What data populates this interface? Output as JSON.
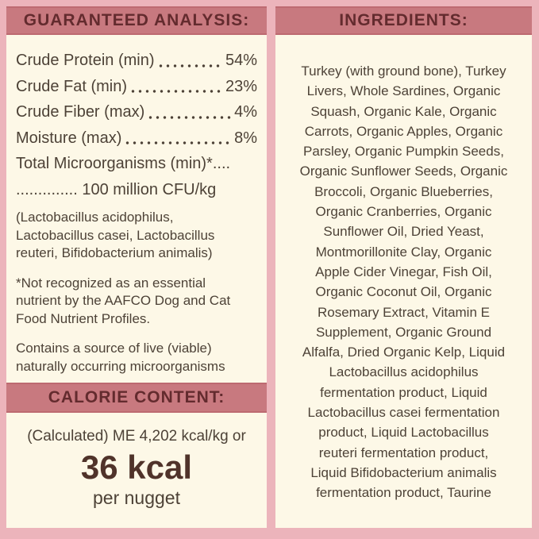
{
  "colors": {
    "background_pink": "#ecb4bb",
    "header_band": "#c8797f",
    "header_band_edge": "#bd6a71",
    "header_text": "#632b2e",
    "panel_cream": "#fdf8e7",
    "body_text": "#4d4237",
    "kcal_text": "#50332a"
  },
  "left": {
    "analysis": {
      "title": "GUARANTEED ANALYSIS:",
      "rows": [
        {
          "label": "Crude Protein (min)",
          "value": "54%"
        },
        {
          "label": "Crude Fat (min)",
          "value": "23%"
        },
        {
          "label": "Crude Fiber (max)",
          "value": "4%"
        },
        {
          "label": "Moisture (max)",
          "value": "8%"
        }
      ],
      "microorganisms_line1": "Total Microorganisms (min)*....",
      "microorganisms_line2": ".............. 100 million CFU/kg",
      "note_bacteria": "(Lactobacillus acidophilus,\nLactobacillus casei, Lactobacillus\nreuteri, Bifidobacterium animalis)",
      "note_aafco": "*Not recognized as an essential\nnutrient by the AAFCO Dog and Cat\nFood Nutrient Profiles.",
      "note_live": "Contains a source of live (viable)\nnaturally occurring microorganisms"
    },
    "calorie": {
      "title": "CALORIE CONTENT:",
      "line1": "(Calculated) ME 4,202 kcal/kg or",
      "kcal": "36 kcal",
      "per": "per nugget"
    }
  },
  "right": {
    "title": "INGREDIENTS:",
    "ingredients": "Turkey (with ground bone), Turkey\nLivers,  Whole Sardines, Organic\nSquash, Organic Kale, Organic\nCarrots, Organic Apples, Organic\nParsley, Organic Pumpkin Seeds,\nOrganic Sunflower Seeds, Organic\nBroccoli, Organic Blueberries,\nOrganic Cranberries, Organic\nSunflower Oil, Dried Yeast,\nMontmorillonite Clay, Organic\nApple Cider Vinegar, Fish Oil,\nOrganic Coconut Oil, Organic\nRosemary Extract, Vitamin E\nSupplement, Organic Ground\nAlfalfa, Dried Organic Kelp, Liquid\nLactobacillus acidophilus\nfermentation product, Liquid\nLactobacillus casei fermentation\nproduct, Liquid Lactobacillus\nreuteri fermentation product,\nLiquid Bifidobacterium animalis\nfermentation product, Taurine"
  }
}
